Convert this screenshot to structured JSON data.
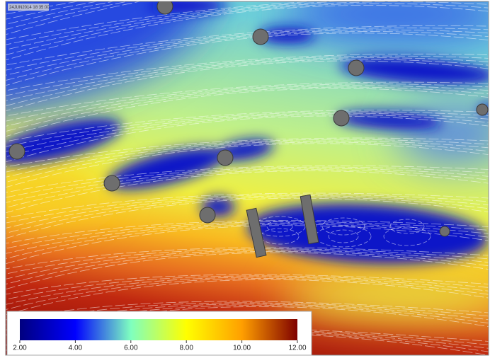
{
  "timestamp": "24JUN2014 18:35:00",
  "colorbar": {
    "range": [
      2,
      12
    ],
    "colors": [
      "#00007f",
      "#0000ff",
      "#7fffbf",
      "#ffff00",
      "#ff9f00",
      "#7f0000"
    ],
    "ticks": [
      {
        "value": 2,
        "label": "2.00"
      },
      {
        "value": 4,
        "label": "4.00"
      },
      {
        "value": 6,
        "label": "6.00"
      },
      {
        "value": 8,
        "label": "8.00"
      },
      {
        "value": 10,
        "label": "10.00"
      },
      {
        "value": 12,
        "label": "12.00"
      }
    ]
  }
}
